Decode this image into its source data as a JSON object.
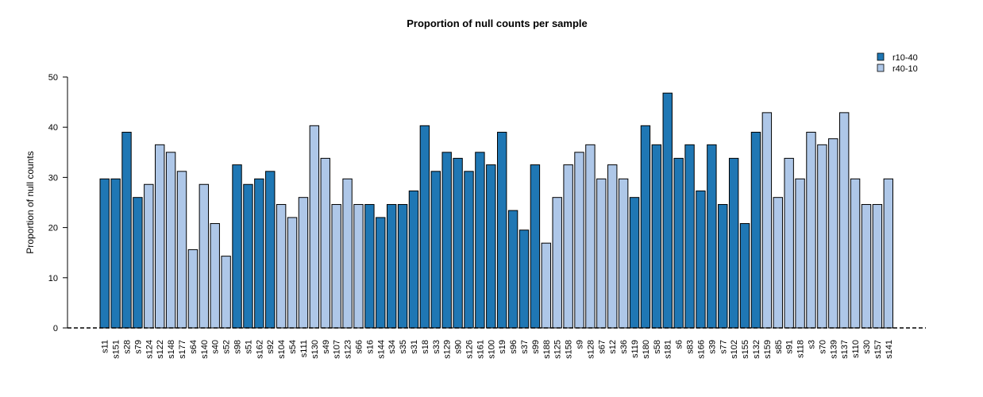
{
  "chart_data": {
    "type": "bar",
    "title": "Proportion of null counts per sample",
    "xlabel": "",
    "ylabel": "Proportion of null counts",
    "ylim": [
      0,
      50
    ],
    "yticks": [
      0,
      10,
      20,
      30,
      40,
      50
    ],
    "grid": false,
    "legend_position": "top-right",
    "series": [
      {
        "name": "r10-40",
        "color": "#1f77b4"
      },
      {
        "name": "r40-10",
        "color": "#aec7e8"
      }
    ],
    "reference_line": {
      "y": 0,
      "style": "dashed"
    },
    "categories": [
      "s11",
      "s151",
      "s28",
      "s79",
      "s124",
      "s122",
      "s148",
      "s177",
      "s64",
      "s140",
      "s40",
      "s52",
      "s98",
      "s51",
      "s162",
      "s92",
      "s104",
      "s54",
      "s111",
      "s130",
      "s49",
      "s107",
      "s123",
      "s66",
      "s16",
      "s144",
      "s34",
      "s35",
      "s31",
      "s18",
      "s33",
      "s129",
      "s90",
      "s126",
      "s161",
      "s100",
      "s19",
      "s96",
      "s37",
      "s99",
      "s188",
      "s125",
      "s158",
      "s9",
      "s128",
      "s67",
      "s12",
      "s36",
      "s119",
      "s180",
      "s58",
      "s181",
      "s6",
      "s83",
      "s166",
      "s39",
      "s77",
      "s102",
      "s155",
      "s132",
      "s159",
      "s85",
      "s91",
      "s118",
      "s3",
      "s70",
      "s139",
      "s137",
      "s110",
      "s30",
      "s157",
      "s141"
    ],
    "values": [
      29.7,
      29.7,
      39.0,
      26.0,
      28.6,
      36.5,
      35.0,
      31.2,
      15.6,
      28.6,
      20.8,
      14.3,
      32.5,
      28.6,
      29.7,
      31.2,
      24.6,
      22.0,
      26.0,
      40.3,
      33.8,
      24.6,
      29.7,
      24.6,
      24.6,
      22.0,
      24.6,
      24.6,
      27.3,
      40.3,
      31.2,
      35.0,
      33.8,
      31.2,
      35.0,
      32.5,
      39.0,
      23.4,
      19.5,
      32.5,
      16.9,
      26.0,
      32.5,
      35.0,
      36.5,
      29.7,
      32.5,
      29.7,
      26.0,
      40.3,
      36.5,
      46.8,
      33.8,
      36.5,
      27.3,
      36.5,
      24.6,
      33.8,
      20.8,
      39.0,
      42.9,
      26.0,
      33.8,
      29.7,
      39.0,
      36.5,
      37.7,
      42.9,
      29.7,
      24.6,
      24.6,
      29.7
    ],
    "groups": [
      "r10-40",
      "r10-40",
      "r10-40",
      "r10-40",
      "r40-10",
      "r40-10",
      "r40-10",
      "r40-10",
      "r40-10",
      "r40-10",
      "r40-10",
      "r40-10",
      "r10-40",
      "r10-40",
      "r10-40",
      "r10-40",
      "r40-10",
      "r40-10",
      "r40-10",
      "r40-10",
      "r40-10",
      "r40-10",
      "r40-10",
      "r40-10",
      "r10-40",
      "r10-40",
      "r10-40",
      "r10-40",
      "r10-40",
      "r10-40",
      "r10-40",
      "r10-40",
      "r10-40",
      "r10-40",
      "r10-40",
      "r10-40",
      "r10-40",
      "r10-40",
      "r10-40",
      "r10-40",
      "r40-10",
      "r40-10",
      "r40-10",
      "r40-10",
      "r40-10",
      "r40-10",
      "r40-10",
      "r40-10",
      "r10-40",
      "r10-40",
      "r10-40",
      "r10-40",
      "r10-40",
      "r10-40",
      "r10-40",
      "r10-40",
      "r10-40",
      "r10-40",
      "r10-40",
      "r10-40",
      "r40-10",
      "r40-10",
      "r40-10",
      "r40-10",
      "r40-10",
      "r40-10",
      "r40-10",
      "r40-10",
      "r40-10",
      "r40-10",
      "r40-10",
      "r40-10"
    ]
  }
}
